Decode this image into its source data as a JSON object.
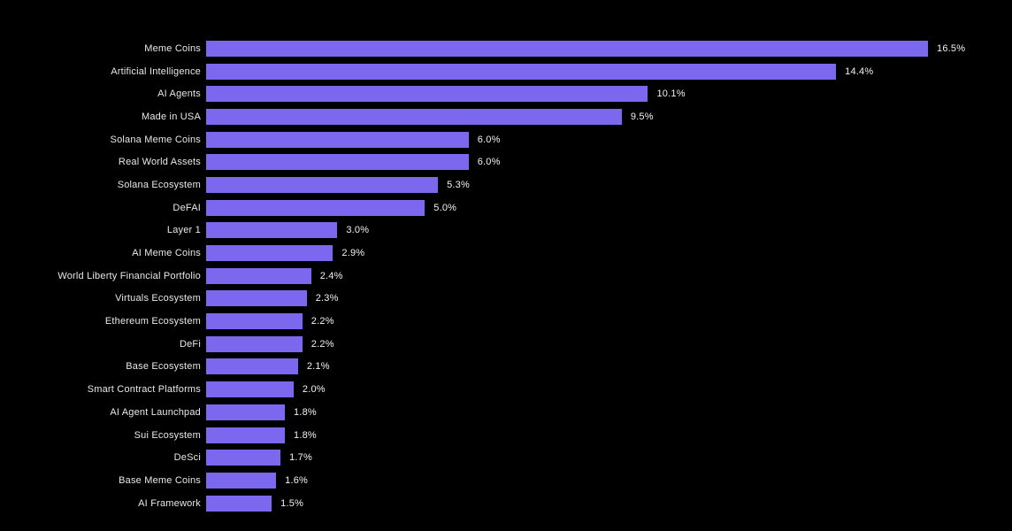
{
  "chart_data": {
    "type": "bar",
    "orientation": "horizontal",
    "title": "",
    "xlabel": "",
    "ylabel": "",
    "xlim": [
      0,
      16.5
    ],
    "grid": false,
    "legend": false,
    "background_color": "#000000",
    "bar_color": "#7b68ee",
    "label_color": "#e8e8e8",
    "value_color": "#f2f2f2",
    "categories": [
      "Meme Coins",
      "Artificial Intelligence",
      "AI Agents",
      "Made in USA",
      "Solana Meme Coins",
      "Real World Assets",
      "Solana Ecosystem",
      "DeFAI",
      "Layer 1",
      "AI Meme Coins",
      "World Liberty Financial Portfolio",
      "Virtuals Ecosystem",
      "Ethereum Ecosystem",
      "DeFi",
      "Base Ecosystem",
      "Smart Contract Platforms",
      "AI Agent Launchpad",
      "Sui Ecosystem",
      "DeSci",
      "Base Meme Coins",
      "AI Framework"
    ],
    "values": [
      16.5,
      14.4,
      10.1,
      9.5,
      6.0,
      6.0,
      5.3,
      5.0,
      3.0,
      2.9,
      2.4,
      2.3,
      2.2,
      2.2,
      2.1,
      2.0,
      1.8,
      1.8,
      1.7,
      1.6,
      1.5
    ],
    "value_labels": [
      "16.5%",
      "14.4%",
      "10.1%",
      "9.5%",
      "6.0%",
      "6.0%",
      "5.3%",
      "5.0%",
      "3.0%",
      "2.9%",
      "2.4%",
      "2.3%",
      "2.2%",
      "2.2%",
      "2.1%",
      "2.0%",
      "1.8%",
      "1.8%",
      "1.7%",
      "1.6%",
      "1.5%"
    ]
  }
}
